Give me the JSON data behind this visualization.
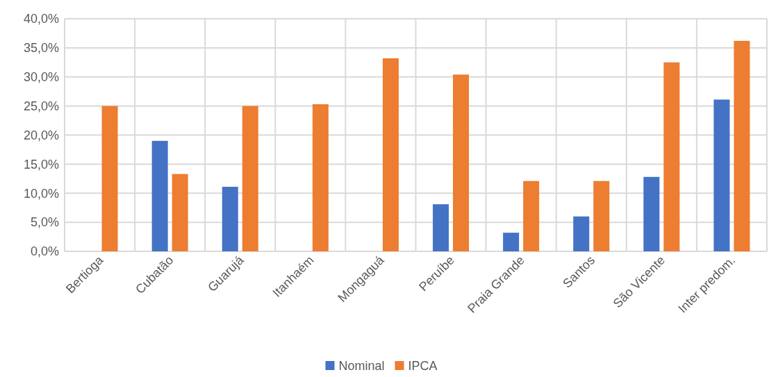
{
  "chart_data": {
    "type": "bar",
    "categories": [
      "Bertioga",
      "Cubatão",
      "Guarujá",
      "Itanhaém",
      "Mongaguá",
      "Peruíbe",
      "Praia Grande",
      "Santos",
      "São Vicente",
      "Inter predom."
    ],
    "series": [
      {
        "name": "Nominal",
        "color": "#4472c4",
        "values": [
          null,
          19.0,
          11.1,
          null,
          null,
          8.1,
          3.2,
          6.0,
          12.8,
          26.1
        ]
      },
      {
        "name": "IPCA",
        "color": "#ed7d31",
        "values": [
          25.0,
          13.3,
          25.0,
          25.3,
          33.2,
          30.4,
          12.1,
          12.1,
          32.5,
          36.2
        ]
      }
    ],
    "ylim": [
      0,
      40
    ],
    "yticks": [
      {
        "value": 0,
        "label": "0,0%"
      },
      {
        "value": 5,
        "label": "5,0%"
      },
      {
        "value": 10,
        "label": "10,0%"
      },
      {
        "value": 15,
        "label": "15,0%"
      },
      {
        "value": 20,
        "label": "20,0%"
      },
      {
        "value": 25,
        "label": "25,0%"
      },
      {
        "value": 30,
        "label": "30,0%"
      },
      {
        "value": 35,
        "label": "35,0%"
      },
      {
        "value": 40,
        "label": "40,0%"
      }
    ],
    "grid": true,
    "legend": "bottom"
  }
}
